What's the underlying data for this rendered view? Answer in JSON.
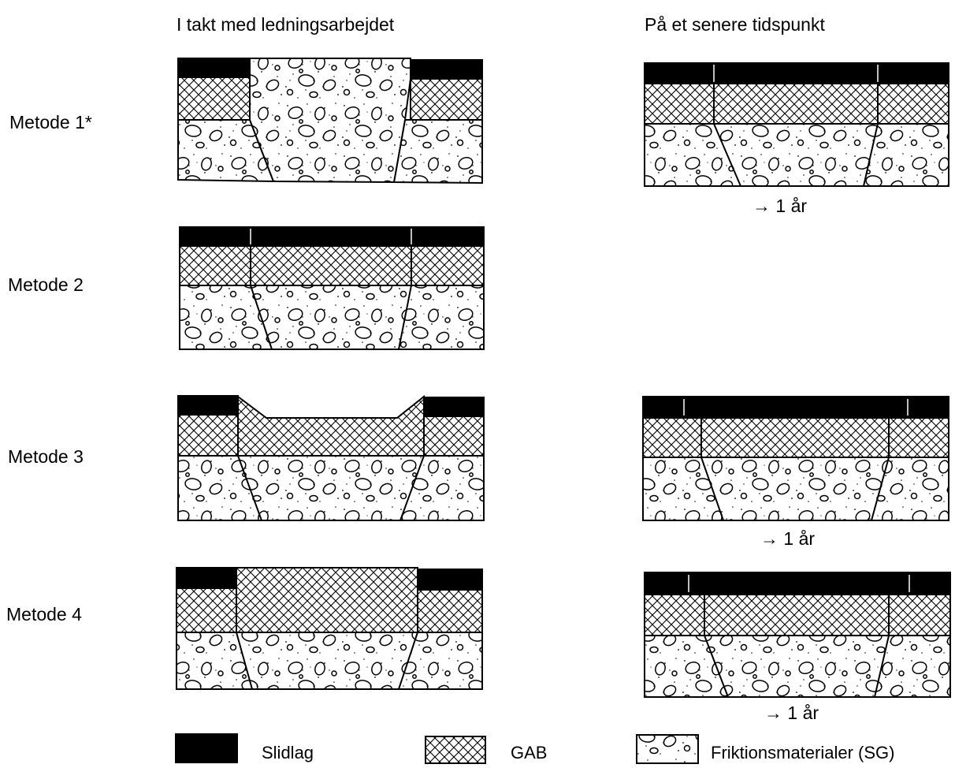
{
  "headers": {
    "left": "I takt med ledningsarbejdet",
    "right": "På et senere tidspunkt"
  },
  "methods": [
    {
      "label": "Metode 1*",
      "later_caption": "→ 1 år"
    },
    {
      "label": "Metode 2",
      "later_caption": ""
    },
    {
      "label": "Metode 3",
      "later_caption": "→ 1 år"
    },
    {
      "label": "Metode 4",
      "later_caption": "→ 1 år"
    }
  ],
  "legend": {
    "slidlag": "Slidlag",
    "gab": "GAB",
    "sg": "Friktionsmaterialer (SG)"
  },
  "colors": {
    "ink": "#000000",
    "paper": "#ffffff"
  }
}
